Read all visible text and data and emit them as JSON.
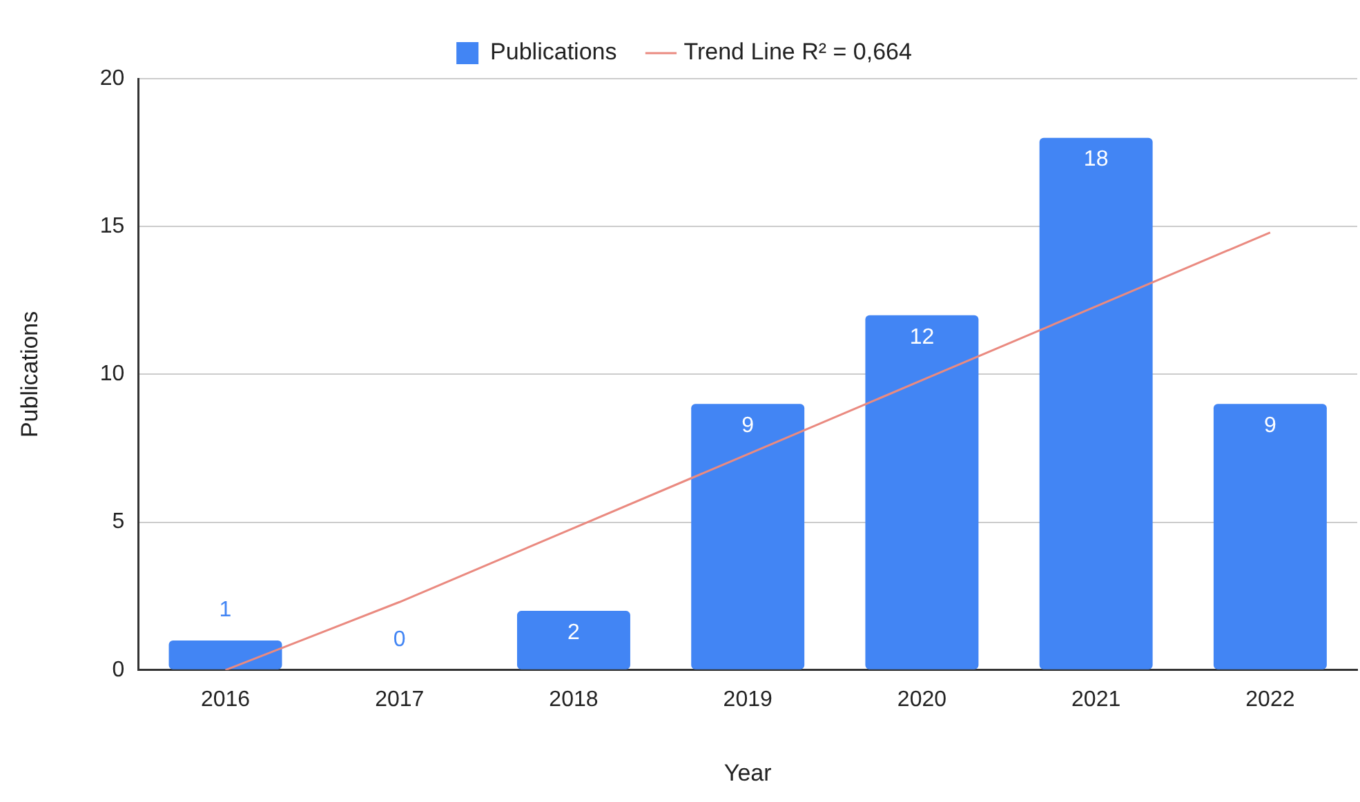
{
  "chart_data": {
    "type": "bar",
    "xlabel": "Year",
    "ylabel": "Publications",
    "categories": [
      "2016",
      "2017",
      "2018",
      "2019",
      "2020",
      "2021",
      "2022"
    ],
    "series": [
      {
        "name": "Publications",
        "color": "#4285f4",
        "values": [
          1,
          0,
          2,
          9,
          12,
          18,
          9
        ],
        "value_labels": [
          "1",
          "0",
          "2",
          "9",
          "12",
          "18",
          "9"
        ]
      },
      {
        "name": "Trend Line R² = 0,664",
        "type": "line",
        "color": "#ea8a80",
        "values": [
          0,
          2.3,
          4.8,
          7.3,
          9.8,
          12.3,
          14.8
        ]
      }
    ],
    "ylim": [
      0,
      20
    ],
    "yticks": [
      0,
      5,
      10,
      15,
      20
    ],
    "grid": "y",
    "legend": "top",
    "marker": "none"
  }
}
